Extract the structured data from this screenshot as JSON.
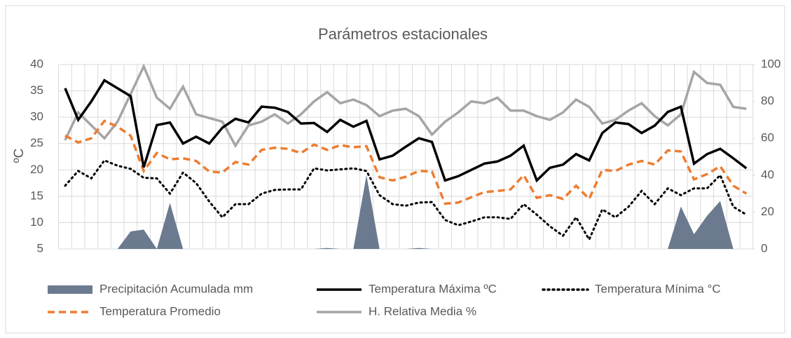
{
  "chart_data": {
    "type": "line",
    "title": "Parámetros estacionales",
    "y_label": "ºC",
    "categories": [
      null,
      null,
      null,
      null,
      null,
      null,
      null,
      null,
      null,
      null,
      null,
      null,
      null,
      null,
      null,
      null,
      null,
      null,
      null,
      null,
      null,
      null,
      null,
      null,
      null,
      null,
      null,
      null,
      null,
      null,
      null,
      null,
      null,
      null,
      null,
      null,
      null,
      null,
      null,
      null,
      null,
      null,
      null,
      null,
      null,
      null,
      null,
      null,
      null,
      null,
      null,
      null,
      null
    ],
    "ylim": [
      5,
      40
    ],
    "yticks": [
      5,
      10,
      15,
      20,
      25,
      30,
      35,
      40
    ],
    "y2lim": [
      0,
      100
    ],
    "y2ticks": [
      0,
      20,
      40,
      60,
      80,
      100
    ],
    "grid": true,
    "legend": "bottom",
    "series": [
      {
        "name": "Precipitación Acumulada mm",
        "type": "area",
        "axis": "y2",
        "color": "#6b7a8f",
        "dash": "solid",
        "values": [
          0,
          0,
          0,
          0,
          0,
          9.5,
          10.5,
          0,
          25,
          0,
          0,
          0,
          0,
          0,
          0,
          0,
          0,
          0,
          0,
          0,
          0.5,
          0,
          0,
          40,
          0,
          0,
          0,
          0.5,
          0,
          0,
          0,
          0,
          0,
          0,
          0,
          0,
          0,
          0,
          0,
          0,
          0,
          0,
          0,
          0,
          0,
          0,
          0,
          23,
          8,
          18,
          26,
          0,
          0
        ]
      },
      {
        "name": "H. Relativa Media %",
        "type": "line",
        "axis": "y2",
        "color": "#a5a5a5",
        "dash": "solid",
        "values": [
          59,
          74,
          67,
          60,
          69,
          84,
          99,
          82,
          76,
          88,
          73,
          71,
          69,
          56,
          67,
          69,
          73,
          68,
          73,
          80,
          85,
          79,
          81,
          78,
          72,
          75,
          76,
          72,
          62,
          69,
          74,
          80,
          79,
          82,
          75,
          75,
          72,
          70,
          74,
          81,
          77,
          68,
          70,
          75,
          79,
          72,
          67,
          73,
          96,
          90,
          89,
          77,
          76
        ]
      },
      {
        "name": "Temperatura Promedio",
        "type": "line",
        "axis": "y",
        "color": "#ed7d31",
        "dash": "dashed",
        "values": [
          26.5,
          25.2,
          26,
          29.3,
          28.2,
          26.5,
          19.8,
          23.2,
          22,
          22.2,
          21.7,
          19.7,
          19.5,
          21.5,
          21,
          23.8,
          24.2,
          24,
          23.2,
          24.8,
          23.8,
          24.7,
          24.3,
          24.5,
          18.6,
          18,
          18.7,
          19.8,
          19.7,
          13.6,
          13.8,
          14.8,
          15.8,
          16,
          16.3,
          19,
          14.7,
          15.2,
          14.5,
          17,
          14.5,
          20,
          19.8,
          21,
          21.7,
          21,
          23.7,
          23.5,
          18.2,
          19.2,
          20.7,
          17,
          15.5
        ]
      },
      {
        "name": "Temperatura Mínima °C",
        "type": "line",
        "axis": "y",
        "color": "#000000",
        "dash": "dotted",
        "values": [
          17,
          19.8,
          18.4,
          21.8,
          20.8,
          20.2,
          18.5,
          18.4,
          15.5,
          19.5,
          17.5,
          14,
          11,
          13.5,
          13.5,
          15.5,
          16.2,
          16.3,
          16.3,
          20.3,
          19.9,
          20.1,
          20.3,
          19.8,
          15.2,
          13.5,
          13.2,
          13.8,
          13.9,
          10.5,
          9.5,
          10.2,
          11,
          11,
          10.7,
          13.5,
          11.5,
          9.3,
          7.5,
          11,
          6.8,
          12.5,
          11,
          13,
          16,
          13.5,
          16.5,
          15.2,
          16.5,
          16.5,
          19,
          13,
          11.5
        ]
      },
      {
        "name": "Temperatura Máxima ºC",
        "type": "line",
        "axis": "y",
        "color": "#000000",
        "dash": "solid",
        "values": [
          35.5,
          29.5,
          33,
          37,
          35.5,
          34,
          20.5,
          28.5,
          29,
          25,
          26.3,
          25,
          28,
          29.7,
          29,
          32,
          31.8,
          31,
          28.8,
          28.9,
          27.2,
          29.5,
          28.2,
          29.3,
          22,
          22.7,
          24.4,
          26,
          25.3,
          18,
          18.8,
          20,
          21.2,
          21.6,
          22.7,
          24.6,
          18,
          20.4,
          21,
          23,
          21.8,
          27,
          29,
          28.7,
          27,
          28.4,
          31,
          32,
          21.2,
          23,
          24,
          22.2,
          20.3
        ]
      }
    ]
  }
}
